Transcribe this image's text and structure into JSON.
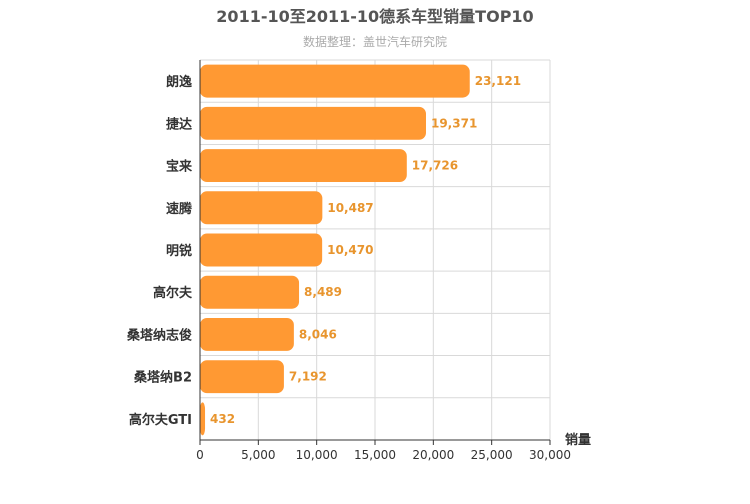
{
  "chart_data": {
    "type": "bar",
    "orientation": "horizontal",
    "title": "2011-10至2011-10德系车型销量TOP10",
    "subtitle": "数据整理：盖世汽车研究院",
    "xlabel": "销量",
    "ylabel": "",
    "xlim": [
      0,
      30000
    ],
    "ticks": [
      0,
      5000,
      10000,
      15000,
      20000,
      25000,
      30000
    ],
    "tick_labels": [
      "0",
      "5,000",
      "10,000",
      "15,000",
      "20,000",
      "25,000",
      "30,000"
    ],
    "categories": [
      "朗逸",
      "捷达",
      "宝来",
      "速腾",
      "明锐",
      "高尔夫",
      "桑塔纳志俊",
      "桑塔纳B2",
      "高尔夫GTI"
    ],
    "values": [
      23121,
      19371,
      17726,
      10487,
      10470,
      8489,
      8046,
      7192,
      432
    ],
    "value_labels": [
      "23,121",
      "19,371",
      "17,726",
      "10,487",
      "10,470",
      "8,489",
      "8,046",
      "7,192",
      "432"
    ],
    "grid": true,
    "colors": {
      "bar": "#FF9933",
      "label": "#E8952E",
      "grid": "#D9D9D9",
      "axis": "#333333",
      "title": "#555555",
      "subtitle": "#AAAAAA",
      "text": "#333333"
    }
  }
}
